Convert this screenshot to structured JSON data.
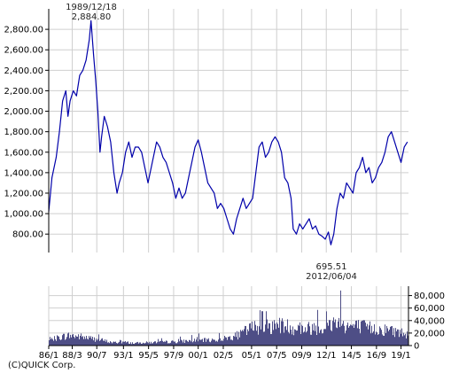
{
  "chart_data": [
    {
      "type": "line",
      "title": "",
      "xlabel": "",
      "ylabel": "",
      "ylim": [
        620,
        3000
      ],
      "y_ticks": [
        800,
        1000,
        1200,
        1400,
        1600,
        1800,
        2000,
        2200,
        2400,
        2600,
        2800
      ],
      "y_tick_labels": [
        "800.00",
        "1,000.00",
        "1,200.00",
        "1,400.00",
        "1,600.00",
        "1,800.00",
        "2,000.00",
        "2,200.00",
        "2,400.00",
        "2,600.00",
        "2,800.00"
      ],
      "xlim": [
        1986.0,
        2019.7
      ],
      "grid": true,
      "line_color": "#0000aa",
      "series": [
        {
          "x": [
            1986.0,
            1986.3,
            1986.7,
            1987.0,
            1987.3,
            1987.6,
            1987.8,
            1988.0,
            1988.3,
            1988.6,
            1988.9,
            1989.2,
            1989.5,
            1989.8,
            1989.96,
            1990.2,
            1990.4,
            1990.6,
            1990.8,
            1990.95,
            1991.2,
            1991.5,
            1991.8,
            1992.1,
            1992.4,
            1992.6,
            1992.9,
            1993.2,
            1993.5,
            1993.8,
            1994.1,
            1994.4,
            1994.7,
            1995.0,
            1995.3,
            1995.5,
            1995.8,
            1996.1,
            1996.4,
            1996.7,
            1997.0,
            1997.3,
            1997.6,
            1997.9,
            1998.2,
            1998.5,
            1998.8,
            1999.1,
            1999.4,
            1999.7,
            2000.0,
            2000.3,
            2000.6,
            2000.9,
            2001.2,
            2001.5,
            2001.8,
            2002.1,
            2002.4,
            2002.7,
            2003.0,
            2003.3,
            2003.6,
            2003.9,
            2004.2,
            2004.5,
            2004.8,
            2005.1,
            2005.4,
            2005.7,
            2006.0,
            2006.3,
            2006.6,
            2006.9,
            2007.2,
            2007.5,
            2007.8,
            2008.1,
            2008.4,
            2008.7,
            2008.9,
            2009.2,
            2009.5,
            2009.8,
            2010.1,
            2010.4,
            2010.7,
            2011.0,
            2011.3,
            2011.6,
            2011.9,
            2012.2,
            2012.43,
            2012.7,
            2013.0,
            2013.3,
            2013.6,
            2013.9,
            2014.2,
            2014.5,
            2014.8,
            2015.1,
            2015.4,
            2015.7,
            2016.0,
            2016.3,
            2016.6,
            2016.9,
            2017.2,
            2017.5,
            2017.8,
            2018.1,
            2018.4,
            2018.7,
            2019.0,
            2019.3,
            2019.6
          ],
          "y": [
            1020,
            1350,
            1550,
            1800,
            2100,
            2200,
            1950,
            2100,
            2200,
            2150,
            2350,
            2400,
            2500,
            2700,
            2884.8,
            2550,
            2300,
            2000,
            1600,
            1750,
            1950,
            1850,
            1700,
            1400,
            1200,
            1300,
            1400,
            1600,
            1700,
            1550,
            1650,
            1650,
            1600,
            1450,
            1300,
            1400,
            1550,
            1700,
            1650,
            1550,
            1500,
            1400,
            1300,
            1150,
            1250,
            1150,
            1200,
            1350,
            1500,
            1650,
            1720,
            1600,
            1450,
            1300,
            1250,
            1200,
            1050,
            1100,
            1050,
            950,
            850,
            800,
            950,
            1050,
            1150,
            1050,
            1100,
            1150,
            1400,
            1650,
            1700,
            1550,
            1600,
            1700,
            1750,
            1700,
            1600,
            1350,
            1300,
            1150,
            850,
            800,
            900,
            850,
            900,
            950,
            850,
            880,
            800,
            780,
            750,
            820,
            695.51,
            800,
            1050,
            1200,
            1150,
            1300,
            1250,
            1200,
            1400,
            1450,
            1550,
            1400,
            1450,
            1300,
            1350,
            1450,
            1500,
            1600,
            1750,
            1800,
            1700,
            1600,
            1500,
            1650,
            1700
          ]
        }
      ],
      "annotations": [
        {
          "date": "1989/12/18",
          "value": "2,884.80"
        }
      ]
    },
    {
      "type": "bar",
      "title": "",
      "xlabel": "",
      "ylabel": "",
      "ylim": [
        0,
        95000
      ],
      "y_ticks": [
        0,
        20000,
        40000,
        60000,
        80000
      ],
      "y_tick_labels": [
        "0",
        "20,000",
        "40,000",
        "60,000",
        "80,000"
      ],
      "bar_color": "#4e4e86",
      "x_tick_labels": [
        "86/1",
        "88/3",
        "90/7",
        "93/1",
        "95/5",
        "97/9",
        "00/1",
        "02/5",
        "05/1",
        "07/5",
        "09/9",
        "12/1",
        "14/5",
        "16/9",
        "19/1"
      ],
      "x_tick_values": [
        1986.0,
        1988.2,
        1990.5,
        1993.0,
        1995.35,
        1997.7,
        2000.0,
        2002.35,
        2005.0,
        2007.35,
        2009.7,
        2012.0,
        2014.35,
        2016.7,
        2019.0
      ],
      "grid": true,
      "volume_profile": {
        "years": [
          1986.0,
          1987.0,
          1988.0,
          1989.0,
          1990.0,
          1991.0,
          1992.0,
          1993.0,
          1994.0,
          1995.0,
          1996.0,
          1997.0,
          1998.0,
          1999.0,
          2000.0,
          2001.0,
          2002.0,
          2003.0,
          2004.0,
          2005.0,
          2006.0,
          2007.0,
          2008.0,
          2009.0,
          2010.0,
          2011.0,
          2012.0,
          2013.0,
          2014.0,
          2015.0,
          2016.0,
          2017.0,
          2018.0,
          2019.0,
          2019.7
        ],
        "levels": [
          8000,
          14000,
          17000,
          15000,
          12000,
          9000,
          5000,
          6000,
          4000,
          5000,
          5500,
          6000,
          6500,
          8000,
          9000,
          9000,
          10000,
          14000,
          19000,
          30000,
          33000,
          32000,
          34000,
          30000,
          28000,
          31000,
          30000,
          42000,
          33000,
          32000,
          30000,
          27000,
          26000,
          22000,
          20000
        ]
      }
    }
  ],
  "annotation_date": "1989/12/18",
  "annotation_value": "2,884.80",
  "low_value": "695.51",
  "low_date": "2012/06/04",
  "credit": "(C)QUICK Corp."
}
